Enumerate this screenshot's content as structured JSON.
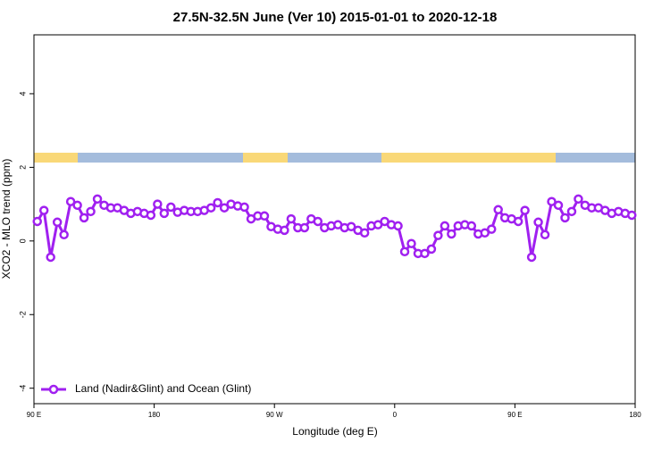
{
  "chart_data": {
    "type": "line",
    "title": "27.5N-32.5N June (Ver 10)   2015-01-01 to 2020-12-18",
    "xlabel": "Longitude (deg E)",
    "ylabel": "XCO2 - MLO trend (ppm)",
    "x": [
      92.5,
      97.5,
      102.5,
      107.5,
      112.5,
      117.5,
      122.5,
      127.5,
      132.5,
      137.5,
      142.5,
      147.5,
      152.5,
      157.5,
      162.5,
      167.5,
      172.5,
      177.5,
      182.5,
      187.5,
      192.5,
      197.5,
      202.5,
      207.5,
      212.5,
      217.5,
      222.5,
      227.5,
      232.5,
      237.5,
      242.5,
      247.5,
      252.5,
      257.5,
      262.5,
      267.5,
      272.5,
      277.5,
      282.5,
      287.5,
      292.5,
      297.5,
      302.5,
      307.5,
      312.5,
      317.5,
      322.5,
      327.5,
      332.5,
      337.5,
      342.5,
      347.5,
      352.5,
      357.5,
      362.5,
      367.5,
      372.5,
      377.5,
      382.5,
      387.5,
      392.5,
      397.5,
      402.5,
      407.5,
      412.5,
      417.5,
      422.5,
      427.5,
      432.5,
      437.5,
      442.5,
      447.5,
      452.5,
      457.5,
      462.5,
      467.5,
      472.5,
      477.5,
      482.5,
      487.5,
      492.5,
      497.5,
      502.5,
      507.5,
      512.5,
      517.5,
      522.5,
      527.5,
      532.5,
      537.5
    ],
    "series": [
      {
        "name": "Land (Nadir&Glint) and Ocean (Glint)",
        "color": "#a020f0",
        "values": [
          0.53,
          0.83,
          -0.44,
          0.51,
          0.17,
          1.07,
          0.97,
          0.63,
          0.8,
          1.14,
          0.97,
          0.9,
          0.9,
          0.83,
          0.75,
          0.8,
          0.75,
          0.7,
          1.0,
          0.75,
          0.92,
          0.78,
          0.83,
          0.8,
          0.8,
          0.83,
          0.9,
          1.04,
          0.9,
          1.0,
          0.95,
          0.92,
          0.6,
          0.68,
          0.68,
          0.39,
          0.32,
          0.29,
          0.6,
          0.36,
          0.36,
          0.6,
          0.53,
          0.36,
          0.41,
          0.44,
          0.36,
          0.39,
          0.29,
          0.22,
          0.41,
          0.44,
          0.53,
          0.44,
          0.41,
          -0.29,
          -0.07,
          -0.34,
          -0.34,
          -0.22,
          0.15,
          0.41,
          0.19,
          0.41,
          0.44,
          0.41,
          0.19,
          0.22,
          0.32,
          0.85,
          0.63,
          0.6,
          0.53,
          0.83,
          -0.44,
          0.51,
          0.17,
          1.07,
          0.97,
          0.63,
          0.8,
          1.14,
          0.97,
          0.9,
          0.9,
          0.83,
          0.75,
          0.8,
          0.75,
          0.7
        ]
      }
    ],
    "xlim": [
      90,
      540
    ],
    "xticks": [
      {
        "value": 90,
        "label": "90 E"
      },
      180,
      {
        "value": 270,
        "label": "90 W"
      },
      {
        "value": 360,
        "label": "0"
      },
      {
        "value": 450,
        "label": "90 E"
      },
      {
        "value": 540,
        "label": "180"
      }
    ],
    "ylim": [
      -4.42,
      5.6
    ],
    "yticks": [
      -4,
      -2,
      0,
      2,
      4
    ],
    "legend": "bottom-left"
  }
}
